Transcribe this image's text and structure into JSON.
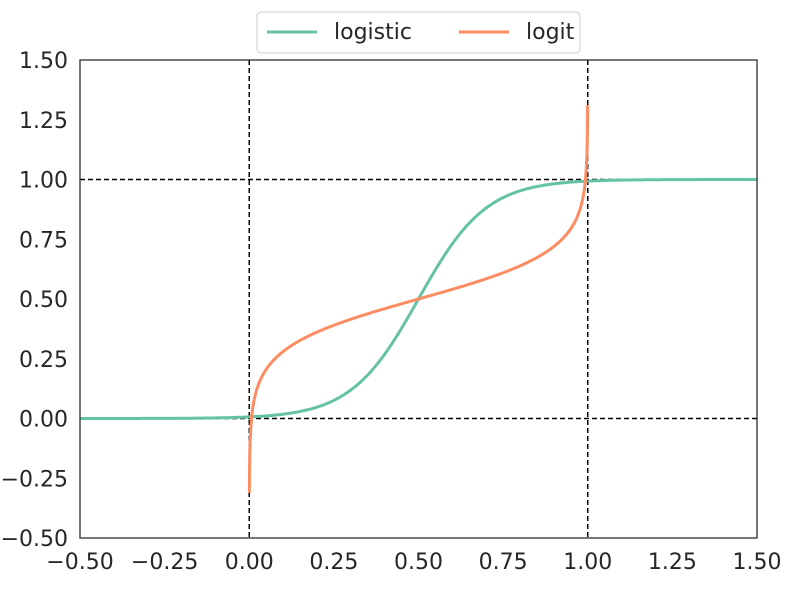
{
  "chart_data": {
    "type": "line",
    "title": "",
    "xlabel": "",
    "ylabel": "",
    "xlim": [
      -0.5,
      1.5
    ],
    "ylim": [
      -0.5,
      1.5
    ],
    "grid": false,
    "legend_placement": "top-center",
    "x_ticks": [
      -0.5,
      -0.25,
      0.0,
      0.25,
      0.5,
      0.75,
      1.0,
      1.25,
      1.5
    ],
    "x_tick_labels": [
      "−0.50",
      "−0.25",
      "0.00",
      "0.25",
      "0.50",
      "0.75",
      "1.00",
      "1.25",
      "1.50"
    ],
    "y_ticks": [
      -0.5,
      -0.25,
      0.0,
      0.25,
      0.5,
      0.75,
      1.0,
      1.25,
      1.5
    ],
    "y_tick_labels": [
      "−0.50",
      "−0.25",
      "0.00",
      "0.25",
      "0.50",
      "0.75",
      "1.00",
      "1.25",
      "1.50"
    ],
    "reference_lines": [
      {
        "orientation": "vertical",
        "value": 0.0,
        "style": "dashed",
        "color": "#000000"
      },
      {
        "orientation": "vertical",
        "value": 1.0,
        "style": "dashed",
        "color": "#000000"
      },
      {
        "orientation": "horizontal",
        "value": 0.0,
        "style": "dashed",
        "color": "#000000"
      },
      {
        "orientation": "horizontal",
        "value": 1.0,
        "style": "dashed",
        "color": "#000000"
      }
    ],
    "series": [
      {
        "name": "logistic",
        "color": "#66c2a5",
        "x": [
          -0.5,
          -0.3,
          -0.1,
          0.0,
          0.1,
          0.2,
          0.3,
          0.4,
          0.5,
          0.6,
          0.7,
          0.8,
          0.9,
          1.0,
          1.1,
          1.3,
          1.5
        ],
        "y": [
          0.0,
          0.0,
          0.0,
          0.007,
          0.018,
          0.047,
          0.119,
          0.269,
          0.5,
          0.731,
          0.881,
          0.953,
          0.982,
          0.993,
          0.998,
          1.0,
          1.0
        ]
      },
      {
        "name": "logit",
        "color": "#fc8d62",
        "x": [
          0.001,
          0.005,
          0.01,
          0.02,
          0.05,
          0.1,
          0.2,
          0.3,
          0.4,
          0.5,
          0.6,
          0.7,
          0.8,
          0.9,
          0.95,
          0.98,
          0.99,
          0.995,
          0.999
        ],
        "y": [
          -0.5,
          -0.0,
          0.04,
          0.11,
          0.21,
          0.28,
          0.36,
          0.41,
          0.46,
          0.5,
          0.54,
          0.59,
          0.64,
          0.72,
          0.79,
          0.89,
          0.96,
          1.04,
          1.5
        ]
      }
    ]
  }
}
